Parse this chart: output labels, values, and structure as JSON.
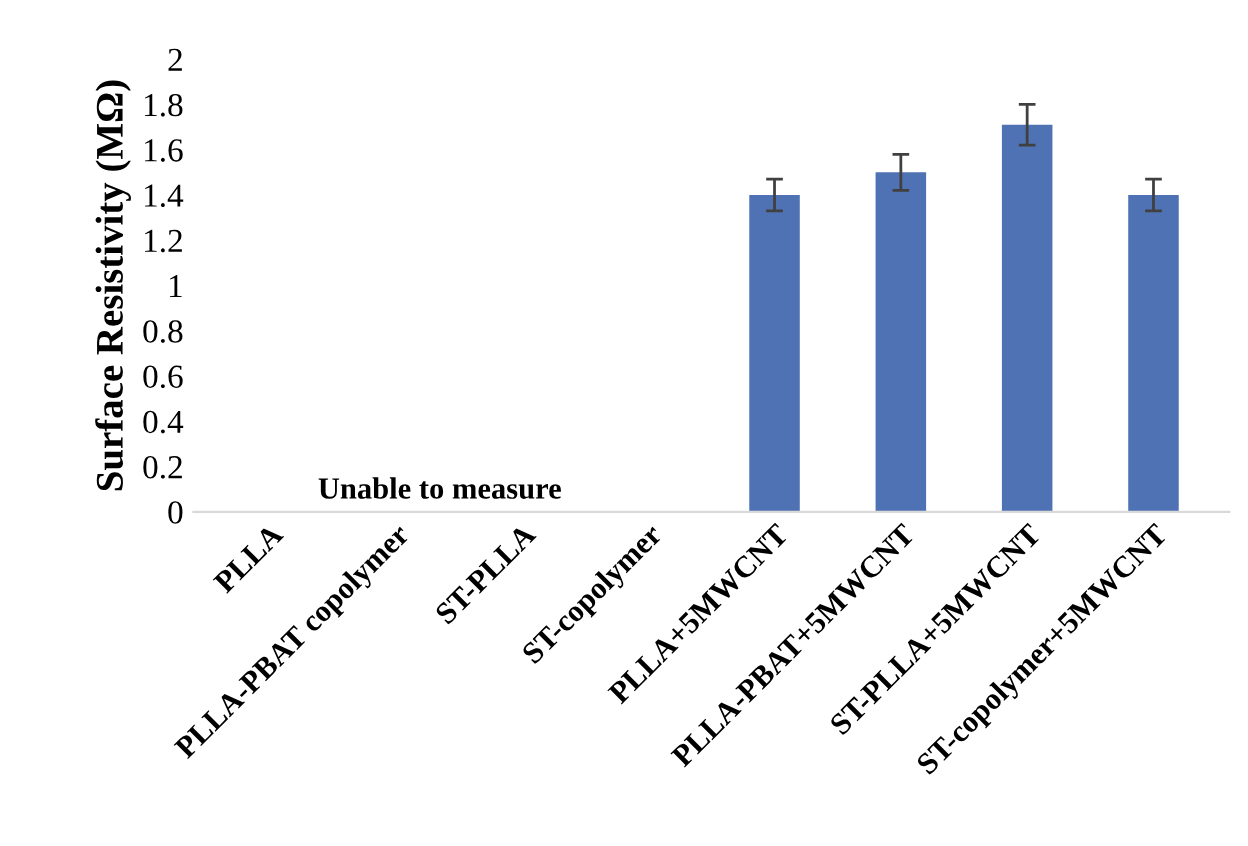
{
  "chart_data": {
    "type": "bar",
    "ylabel": "Surface Resistivity (MΩ)",
    "categories": [
      "PLLA",
      "PLLA-PBAT copolymer",
      "ST-PLLA",
      "ST-copolymer",
      "PLLA+5MWCNT",
      "PLLA-PBAT+5MWCNT",
      "ST-PLLA+5MWCNT",
      "ST-copolymer+5MWCNT"
    ],
    "values": [
      0,
      0,
      0,
      0,
      1.4,
      1.5,
      1.71,
      1.4
    ],
    "errors": [
      null,
      null,
      null,
      null,
      0.07,
      0.08,
      0.09,
      0.07
    ],
    "color": "#4f72b5",
    "ylim": [
      0,
      2
    ],
    "yticks": [
      0,
      {
        "value": 0.2,
        "label": "0.2"
      },
      {
        "value": 0.4,
        "label": "0.4"
      },
      {
        "value": 0.6,
        "label": "0.6"
      },
      {
        "value": 0.8,
        "label": "0.8"
      },
      1,
      {
        "value": 1.2,
        "label": "1.2"
      },
      {
        "value": 1.4,
        "label": "1.4"
      },
      {
        "value": 1.6,
        "label": "1.6"
      },
      {
        "value": 1.8,
        "label": "1.8"
      },
      2
    ],
    "annotations": [
      "Unable to measure"
    ],
    "grid": false,
    "legend": false
  }
}
